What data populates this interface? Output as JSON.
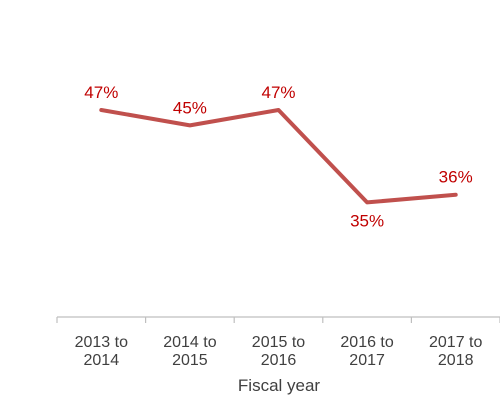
{
  "chart_data": {
    "type": "line",
    "categories": [
      [
        "2013 to",
        "2014"
      ],
      [
        "2014 to",
        "2015"
      ],
      [
        "2015 to",
        "2016"
      ],
      [
        "2016 to",
        "2017"
      ],
      [
        "2017 to",
        "2018"
      ]
    ],
    "series": [
      {
        "values": [
          47,
          45,
          47,
          35,
          36
        ]
      }
    ],
    "data_labels": [
      "47%",
      "45%",
      "47%",
      "35%",
      "36%"
    ],
    "xlabel": "Fiscal year",
    "ylabel": "",
    "title": "",
    "grid": false,
    "legend": "none",
    "colors": {
      "line": "#C0504D",
      "label": "#C00000",
      "axis": "#BFBFBF",
      "text": "#404040"
    }
  }
}
